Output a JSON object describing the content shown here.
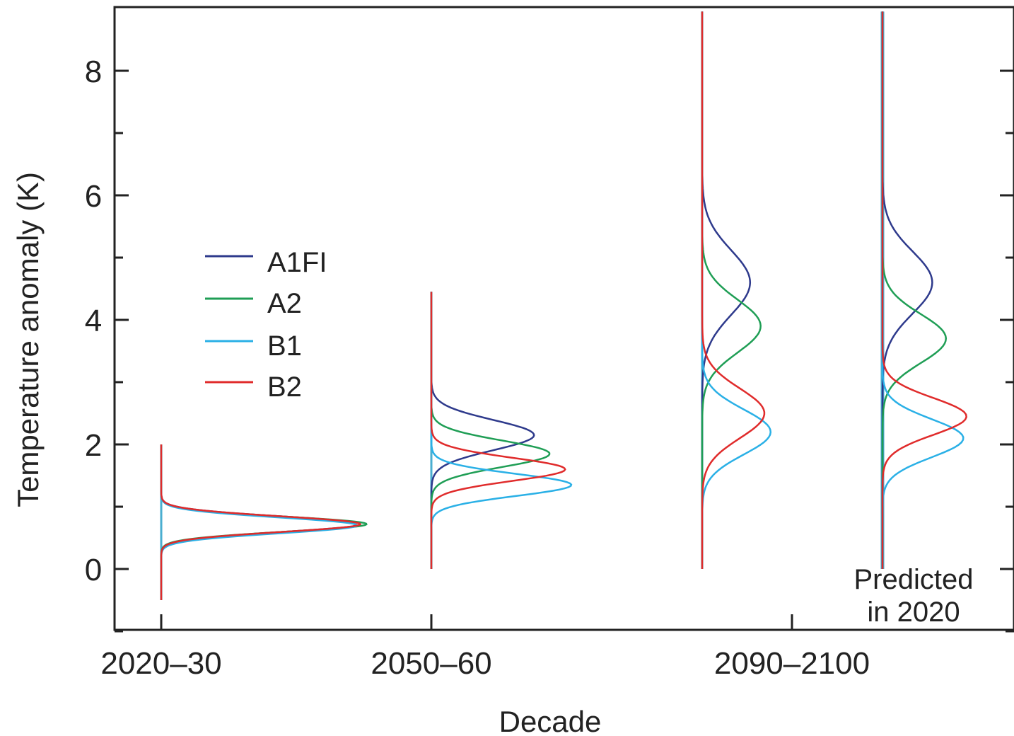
{
  "chart_data": {
    "type": "line",
    "title": "",
    "xlabel": "Decade",
    "ylabel": "Temperature anomaly (K)",
    "ylim": [
      -1,
      9
    ],
    "y_ticks": [
      0,
      2,
      4,
      6,
      8
    ],
    "y_tick_labels": [
      "0",
      "2",
      "4",
      "6",
      "8"
    ],
    "x_tick_labels": [
      "2020–30",
      "2050–60",
      "2090–2100"
    ],
    "categories": [
      "2020–30",
      "2050–60",
      "2090–2100",
      "Predicted in 2020"
    ],
    "grid": false,
    "legend_position": "left",
    "annotation": {
      "line1": "Predicted",
      "line2": "in 2020"
    },
    "colors": {
      "A1FI": "#2e3a8c",
      "A2": "#1f9e55",
      "B1": "#2ab0e6",
      "B2": "#e02b2b",
      "axis": "#222222",
      "baseline": "#4aaed0"
    },
    "series": [
      {
        "name": "A1FI",
        "peak_y": [
          0.72,
          2.15,
          4.6,
          4.6
        ],
        "peak_density": [
          3.2,
          1.65,
          0.77,
          0.8
        ]
      },
      {
        "name": "A2",
        "peak_y": [
          0.72,
          1.85,
          3.9,
          3.7
        ],
        "peak_density": [
          3.3,
          1.9,
          0.94,
          1.02
        ]
      },
      {
        "name": "B1",
        "peak_y": [
          0.7,
          1.35,
          2.2,
          2.1
        ],
        "peak_density": [
          3.15,
          2.25,
          1.1,
          1.3
        ]
      },
      {
        "name": "B2",
        "peak_y": [
          0.72,
          1.6,
          2.5,
          2.45
        ],
        "peak_density": [
          3.2,
          2.15,
          1.0,
          1.35
        ]
      }
    ],
    "groups": [
      {
        "label": "2020–30",
        "y_range": [
          -0.5,
          2.0
        ]
      },
      {
        "label": "2050–60",
        "y_range": [
          0,
          4.45
        ]
      },
      {
        "label": "2090–2100",
        "y_range": [
          0,
          8.95
        ]
      },
      {
        "label": "Predicted in 2020",
        "y_range": [
          0,
          8.95
        ]
      }
    ]
  }
}
